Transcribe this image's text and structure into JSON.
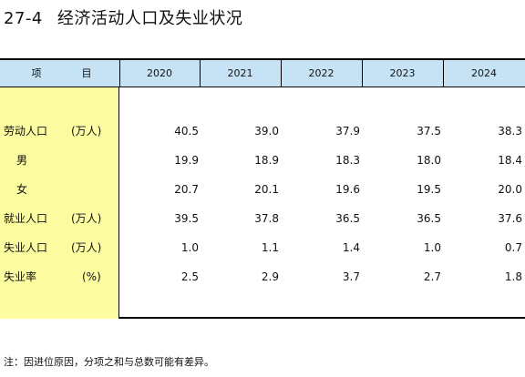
{
  "title": {
    "number": "27-4",
    "text": "经济活动人口及失业状况"
  },
  "header": {
    "stub_label_1": "项",
    "stub_label_2": "目",
    "years": [
      "2020",
      "2021",
      "2022",
      "2023",
      "2024"
    ]
  },
  "rows": [
    {
      "label": "劳动人口",
      "unit": "(万人)",
      "values": [
        "40.5",
        "39.0",
        "37.9",
        "37.5",
        "38.3"
      ]
    },
    {
      "label": "男",
      "unit": "",
      "values": [
        "19.9",
        "18.9",
        "18.3",
        "18.0",
        "18.4"
      ]
    },
    {
      "label": "女",
      "unit": "",
      "values": [
        "20.7",
        "20.1",
        "19.6",
        "19.5",
        "20.0"
      ]
    },
    {
      "label": "就业人口",
      "unit": "(万人)",
      "values": [
        "39.5",
        "37.8",
        "36.5",
        "36.5",
        "37.6"
      ]
    },
    {
      "label": "失业人口",
      "unit": "(万人)",
      "values": [
        "1.0",
        "1.1",
        "1.4",
        "1.0",
        "0.7"
      ]
    },
    {
      "label": "失业率",
      "unit": "(%)",
      "values": [
        "2.5",
        "2.9",
        "3.7",
        "2.7",
        "1.8"
      ]
    }
  ],
  "colors": {
    "header_bg": "#c6e3f5",
    "stub_bg": "#fdfca0"
  },
  "note": "注：因进位原因，分项之和与总数可能有差异。"
}
